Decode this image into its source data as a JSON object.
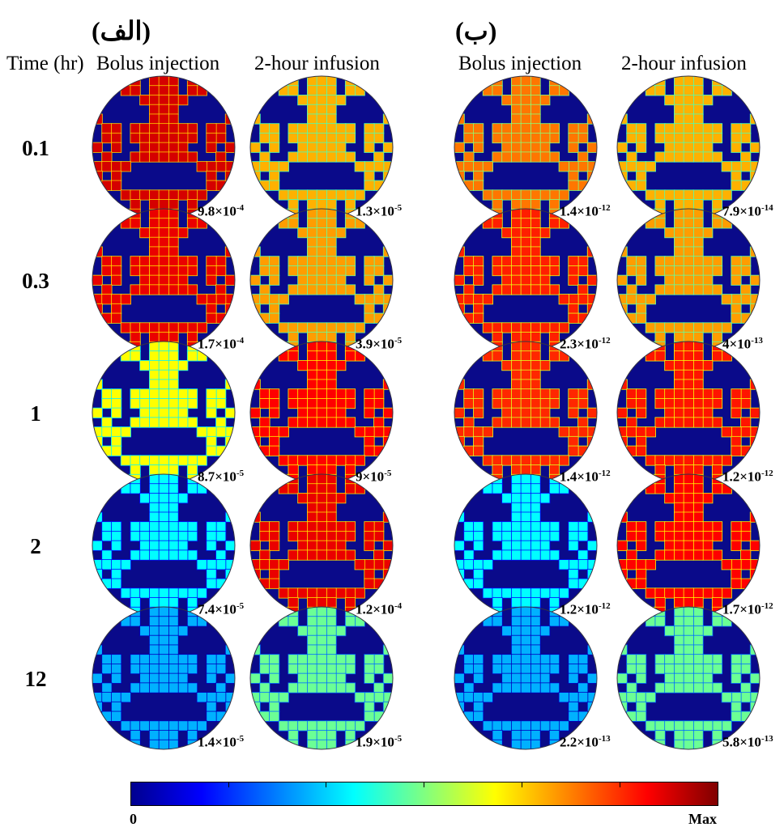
{
  "panels": [
    {
      "label": "(الف)",
      "columns": [
        "Bolus injection",
        "2-hour infusion"
      ]
    },
    {
      "label": "(ب)",
      "columns": [
        "Bolus injection",
        "2-hour infusion"
      ]
    }
  ],
  "time_header": "Time (hr)",
  "rows": [
    {
      "time": "0.1",
      "values": [
        [
          "9.8×10",
          "-4"
        ],
        [
          "1.3×10",
          "-5"
        ],
        [
          "1.4×10",
          "-12"
        ],
        [
          "7.9×10",
          "-14"
        ]
      ],
      "levels": [
        0.92,
        0.7,
        0.76,
        0.7
      ]
    },
    {
      "time": "0.3",
      "values": [
        [
          "1.7×10",
          "-4"
        ],
        [
          "3.9×10",
          "-5"
        ],
        [
          "2.3×10",
          "-12"
        ],
        [
          "4×10",
          "-13"
        ]
      ],
      "levels": [
        0.9,
        0.72,
        0.85,
        0.72
      ]
    },
    {
      "time": "1",
      "values": [
        [
          "8.7×10",
          "-5"
        ],
        [
          "9×10",
          "-5"
        ],
        [
          "1.4×10",
          "-12"
        ],
        [
          "1.2×10",
          "-12"
        ]
      ],
      "levels": [
        0.62,
        0.88,
        0.84,
        0.86
      ]
    },
    {
      "time": "2",
      "values": [
        [
          "7.4×10",
          "-5"
        ],
        [
          "1.2×10",
          "-4"
        ],
        [
          "1.2×10",
          "-12"
        ],
        [
          "1.7×10",
          "-12"
        ]
      ],
      "levels": [
        0.38,
        0.9,
        0.38,
        0.88
      ]
    },
    {
      "time": "12",
      "values": [
        [
          "1.4×10",
          "-5"
        ],
        [
          "1.9×10",
          "-5"
        ],
        [
          "2.2×10",
          "-13"
        ],
        [
          "5.8×10",
          "-13"
        ]
      ],
      "levels": [
        0.3,
        0.48,
        0.3,
        0.48
      ]
    }
  ],
  "colorbar": {
    "min_label": "0",
    "max_label": "Max"
  }
}
